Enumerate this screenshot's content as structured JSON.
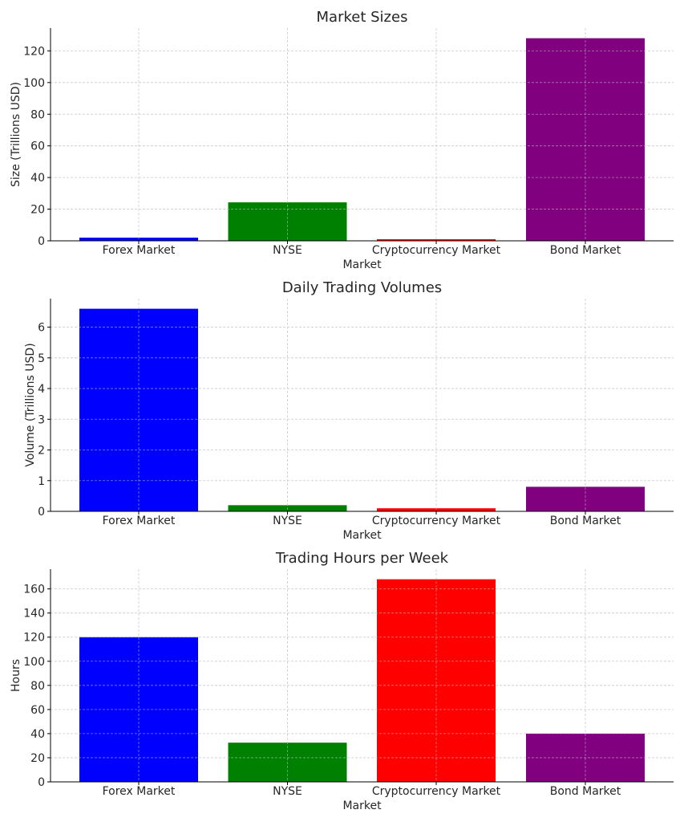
{
  "chart_data": [
    {
      "type": "bar",
      "title": "Market Sizes",
      "xlabel": "Market",
      "ylabel": "Size (Trillions USD)",
      "categories": [
        "Forex Market",
        "NYSE",
        "Cryptocurrency Market",
        "Bond Market"
      ],
      "values": [
        2,
        24.3,
        1,
        128
      ],
      "colors": [
        "#0000ff",
        "#008000",
        "#ff0000",
        "#800080"
      ],
      "yticks": [
        0,
        20,
        40,
        60,
        80,
        100,
        120
      ],
      "ylim": [
        0,
        134.4
      ],
      "grid": true
    },
    {
      "type": "bar",
      "title": "Daily Trading Volumes",
      "xlabel": "Market",
      "ylabel": "Volume (Trillions USD)",
      "categories": [
        "Forex Market",
        "NYSE",
        "Cryptocurrency Market",
        "Bond Market"
      ],
      "values": [
        6.6,
        0.2,
        0.1,
        0.8
      ],
      "colors": [
        "#0000ff",
        "#008000",
        "#ff0000",
        "#800080"
      ],
      "yticks": [
        0,
        1,
        2,
        3,
        4,
        5,
        6
      ],
      "ylim": [
        0,
        6.93
      ],
      "grid": true
    },
    {
      "type": "bar",
      "title": "Trading Hours per Week",
      "xlabel": "Market",
      "ylabel": "Hours",
      "categories": [
        "Forex Market",
        "NYSE",
        "Cryptocurrency Market",
        "Bond Market"
      ],
      "values": [
        120,
        32.5,
        168,
        40
      ],
      "colors": [
        "#0000ff",
        "#008000",
        "#ff0000",
        "#800080"
      ],
      "yticks": [
        0,
        20,
        40,
        60,
        80,
        100,
        120,
        140,
        160
      ],
      "ylim": [
        0,
        176.4
      ],
      "grid": true
    }
  ]
}
